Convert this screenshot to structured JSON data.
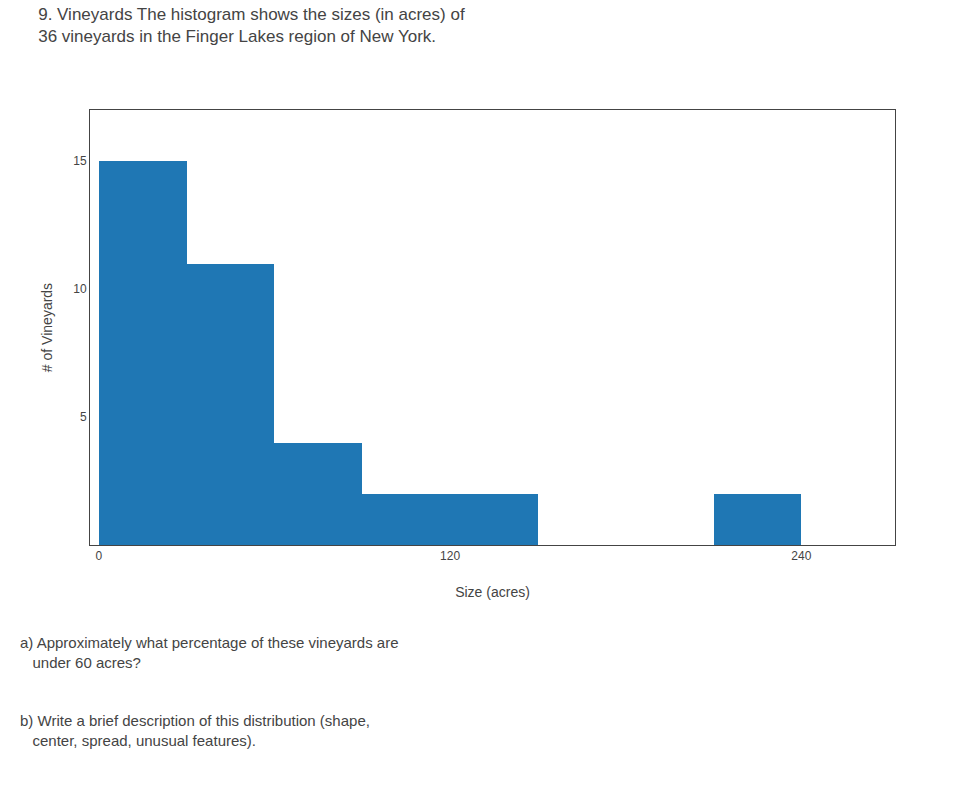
{
  "chart_data": {
    "type": "histogram",
    "title": "9. Vineyards The histogram shows the sizes (in acres) of\n36 vineyards in the Finger Lakes region of New York.",
    "xlabel": "Size (acres)",
    "ylabel": "# of Vineyards",
    "bins": [
      0,
      30,
      60,
      90,
      120,
      150,
      180,
      210,
      240,
      270
    ],
    "values": [
      15,
      11,
      4,
      2,
      2,
      0,
      0,
      2,
      0
    ],
    "xlim": [
      -3,
      272
    ],
    "xticks": [
      0,
      120,
      240
    ],
    "ylim": [
      0,
      17
    ],
    "yticks": [
      5,
      10,
      15
    ],
    "grid": false,
    "annotations": [
      "a) Approximately what percentage of these vineyards are\n   under 60 acres?",
      "b) Write a brief description of this distribution (shape,\n   center, spread, unusual features)."
    ]
  }
}
